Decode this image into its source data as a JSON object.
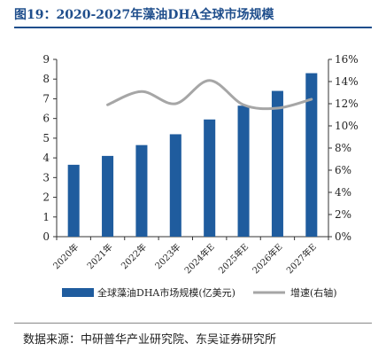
{
  "header": {
    "title": "图19：2020-2027年藻油DHA全球市场规模"
  },
  "footer": {
    "source": "数据来源：中研普华产业研究院、东吴证券研究所"
  },
  "colors": {
    "accent": "#1f4e8c",
    "bar": "#1f5c9e",
    "line": "#a6a6a6"
  },
  "chart_data": {
    "type": "bar",
    "categories": [
      "2020年",
      "2021年",
      "2022年",
      "2023年",
      "2024年E",
      "2025年E",
      "2026年E",
      "2027年E"
    ],
    "series": [
      {
        "name": "全球藻油DHA市场规模(亿美元)",
        "type": "bar",
        "axis": "left",
        "values": [
          3.65,
          4.1,
          4.65,
          5.2,
          5.95,
          6.65,
          7.4,
          8.3
        ]
      },
      {
        "name": "增速(右轴)",
        "type": "line",
        "axis": "right",
        "smooth": true,
        "values": [
          null,
          0.119,
          0.131,
          0.12,
          0.141,
          0.119,
          0.116,
          0.124
        ]
      }
    ],
    "y_left": {
      "lim": [
        0,
        9
      ],
      "ticks": [
        "0",
        "1",
        "2",
        "3",
        "4",
        "5",
        "6",
        "7",
        "8",
        "9"
      ]
    },
    "y_right": {
      "lim": [
        0,
        0.16
      ],
      "ticks": [
        "0%",
        "2%",
        "4%",
        "6%",
        "8%",
        "10%",
        "12%",
        "14%",
        "16%"
      ]
    },
    "legend": "bottom",
    "grid": false
  }
}
